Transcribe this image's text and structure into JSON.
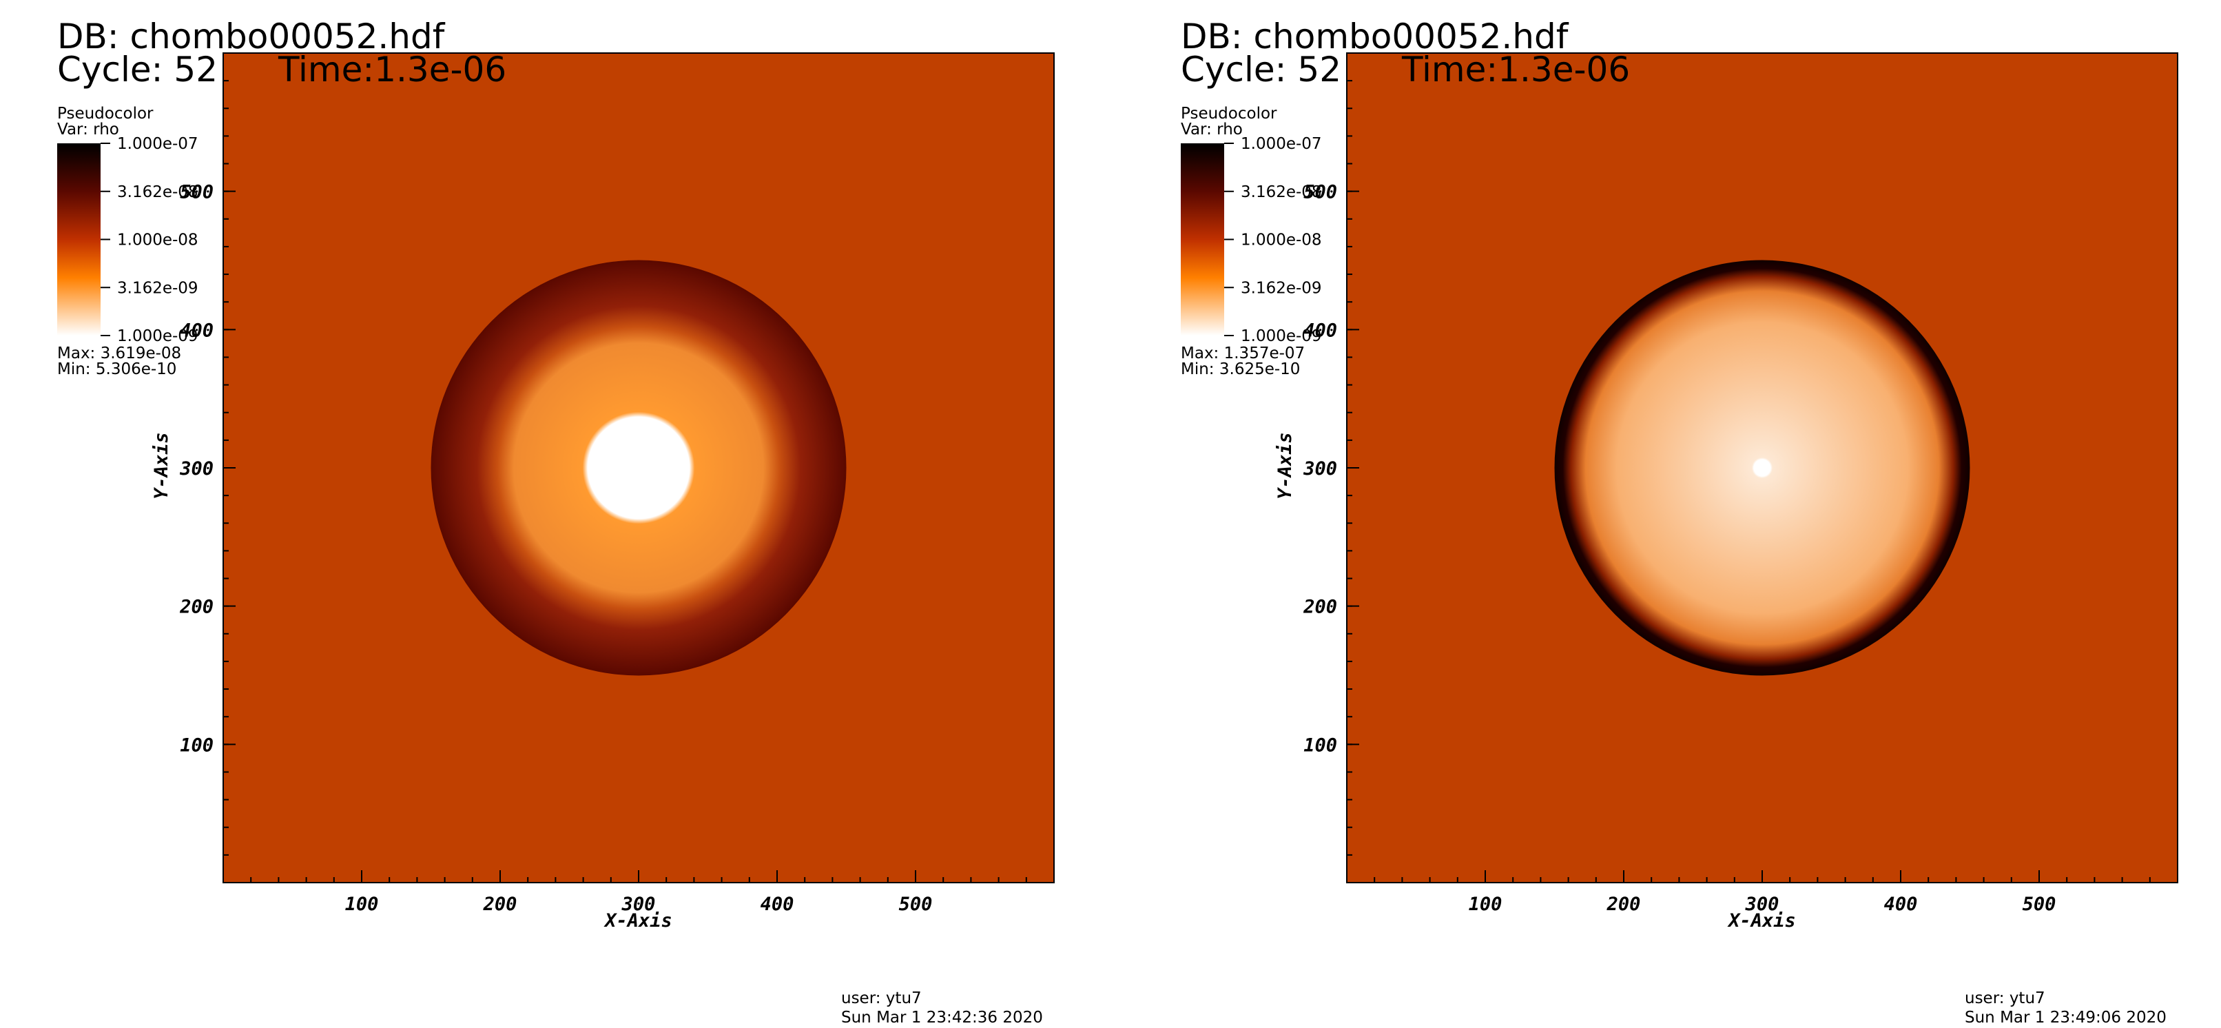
{
  "chart_data": [
    {
      "type": "pseudocolor",
      "db": "DB: chombo00052.hdf",
      "cycle": "Cycle: 52",
      "time": "Time:1.3e-06",
      "legend_title": "Pseudocolor",
      "legend_var": "Var: rho",
      "colorbar_ticks": [
        {
          "value": 1e-07,
          "label": "1.000e-07"
        },
        {
          "value": 3.162e-08,
          "label": "3.162e-08"
        },
        {
          "value": 1e-08,
          "label": "1.000e-08"
        },
        {
          "value": 3.162e-09,
          "label": "3.162e-09"
        },
        {
          "value": 1e-09,
          "label": "1.000e-09"
        }
      ],
      "clim": [
        1e-09,
        1e-07
      ],
      "colorbar_log": true,
      "max": "Max:  3.619e-08",
      "min": "Min:  5.306e-10",
      "xlabel": "X-Axis",
      "ylabel": "Y-Axis",
      "xlim": [
        0,
        600
      ],
      "ylim": [
        0,
        600
      ],
      "xticks": [
        100,
        200,
        300,
        400,
        500
      ],
      "yticks": [
        100,
        200,
        300,
        400,
        500
      ],
      "user": "user: ytu7",
      "date": "Sun Mar  1 23:42:36 2020"
    },
    {
      "type": "pseudocolor",
      "db": "DB: chombo00052.hdf",
      "cycle": "Cycle: 52",
      "time": "Time:1.3e-06",
      "legend_title": "Pseudocolor",
      "legend_var": "Var: rho",
      "colorbar_ticks": [
        {
          "value": 1e-07,
          "label": "1.000e-07"
        },
        {
          "value": 3.162e-08,
          "label": "3.162e-08"
        },
        {
          "value": 1e-08,
          "label": "1.000e-08"
        },
        {
          "value": 3.162e-09,
          "label": "3.162e-09"
        },
        {
          "value": 1e-09,
          "label": "1.000e-09"
        }
      ],
      "clim": [
        1e-09,
        1e-07
      ],
      "colorbar_log": true,
      "max": "Max:  1.357e-07",
      "min": "Min:  3.625e-10",
      "xlabel": "X-Axis",
      "ylabel": "Y-Axis",
      "xlim": [
        0,
        600
      ],
      "ylim": [
        0,
        600
      ],
      "xticks": [
        100,
        200,
        300,
        400,
        500
      ],
      "yticks": [
        100,
        200,
        300,
        400,
        500
      ],
      "user": "user: ytu7",
      "date": "Sun Mar  1 23:49:06 2020"
    }
  ]
}
